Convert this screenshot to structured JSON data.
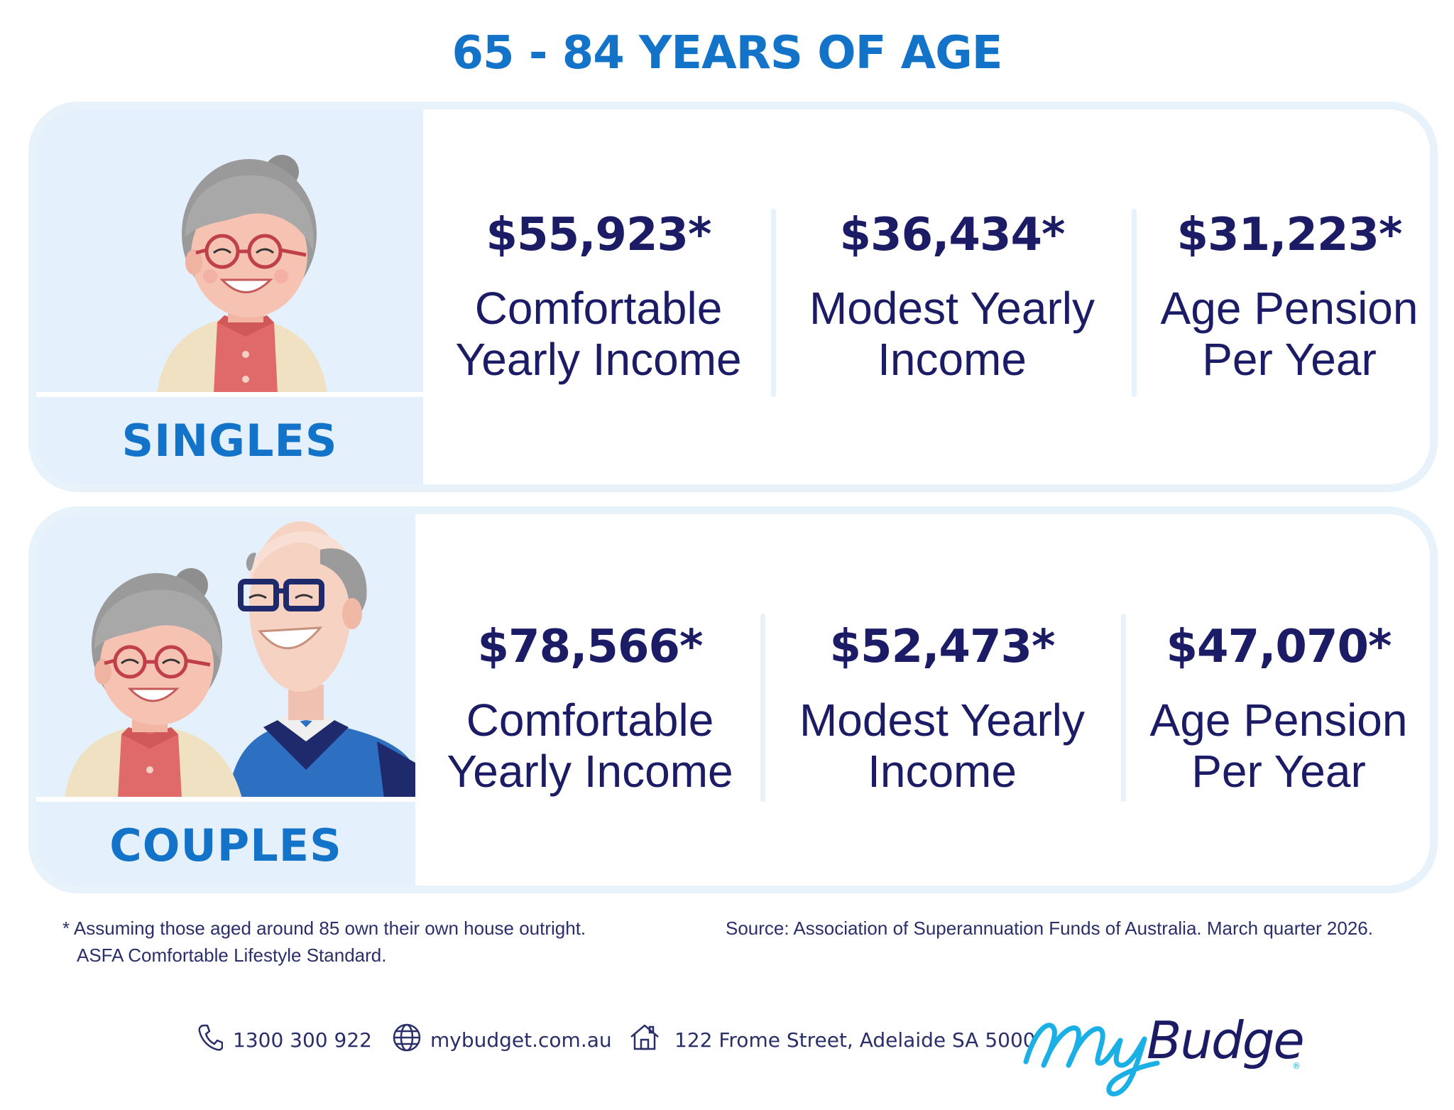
{
  "title": "65 - 84 YEARS OF AGE",
  "groups": [
    {
      "name": "SINGLES",
      "stats": [
        {
          "amount": "$55,923*",
          "label_line1": "Comfortable",
          "label_line2": "Yearly Income"
        },
        {
          "amount": "$36,434*",
          "label_line1": "Modest Yearly",
          "label_line2": "Income"
        },
        {
          "amount": "$31,223*",
          "label_line1": "Age Pension",
          "label_line2": "Per Year"
        }
      ]
    },
    {
      "name": "COUPLES",
      "stats": [
        {
          "amount": "$78,566*",
          "label_line1": "Comfortable",
          "label_line2": "Yearly Income"
        },
        {
          "amount": "$52,473*",
          "label_line1": "Modest Yearly",
          "label_line2": "Income"
        },
        {
          "amount": "$47,070*",
          "label_line1": "Age Pension",
          "label_line2": "Per Year"
        }
      ]
    }
  ],
  "footnote": {
    "line1": "* Assuming those aged around 85 own their own house outright.",
    "line2": "ASFA Comfortable Lifestyle Standard."
  },
  "source": "Source: Association of Superannuation Funds of Australia. March quarter 2026.",
  "contact": {
    "phone": "1300 300 922",
    "website": "mybudget.com.au",
    "address": "122 Frome Street, Adelaide SA 5000"
  },
  "brand": {
    "logo_text": "MyBudget",
    "accent_color": "#1273c9",
    "navy_color": "#1b1b66",
    "panel_color": "#e4f0fb"
  }
}
